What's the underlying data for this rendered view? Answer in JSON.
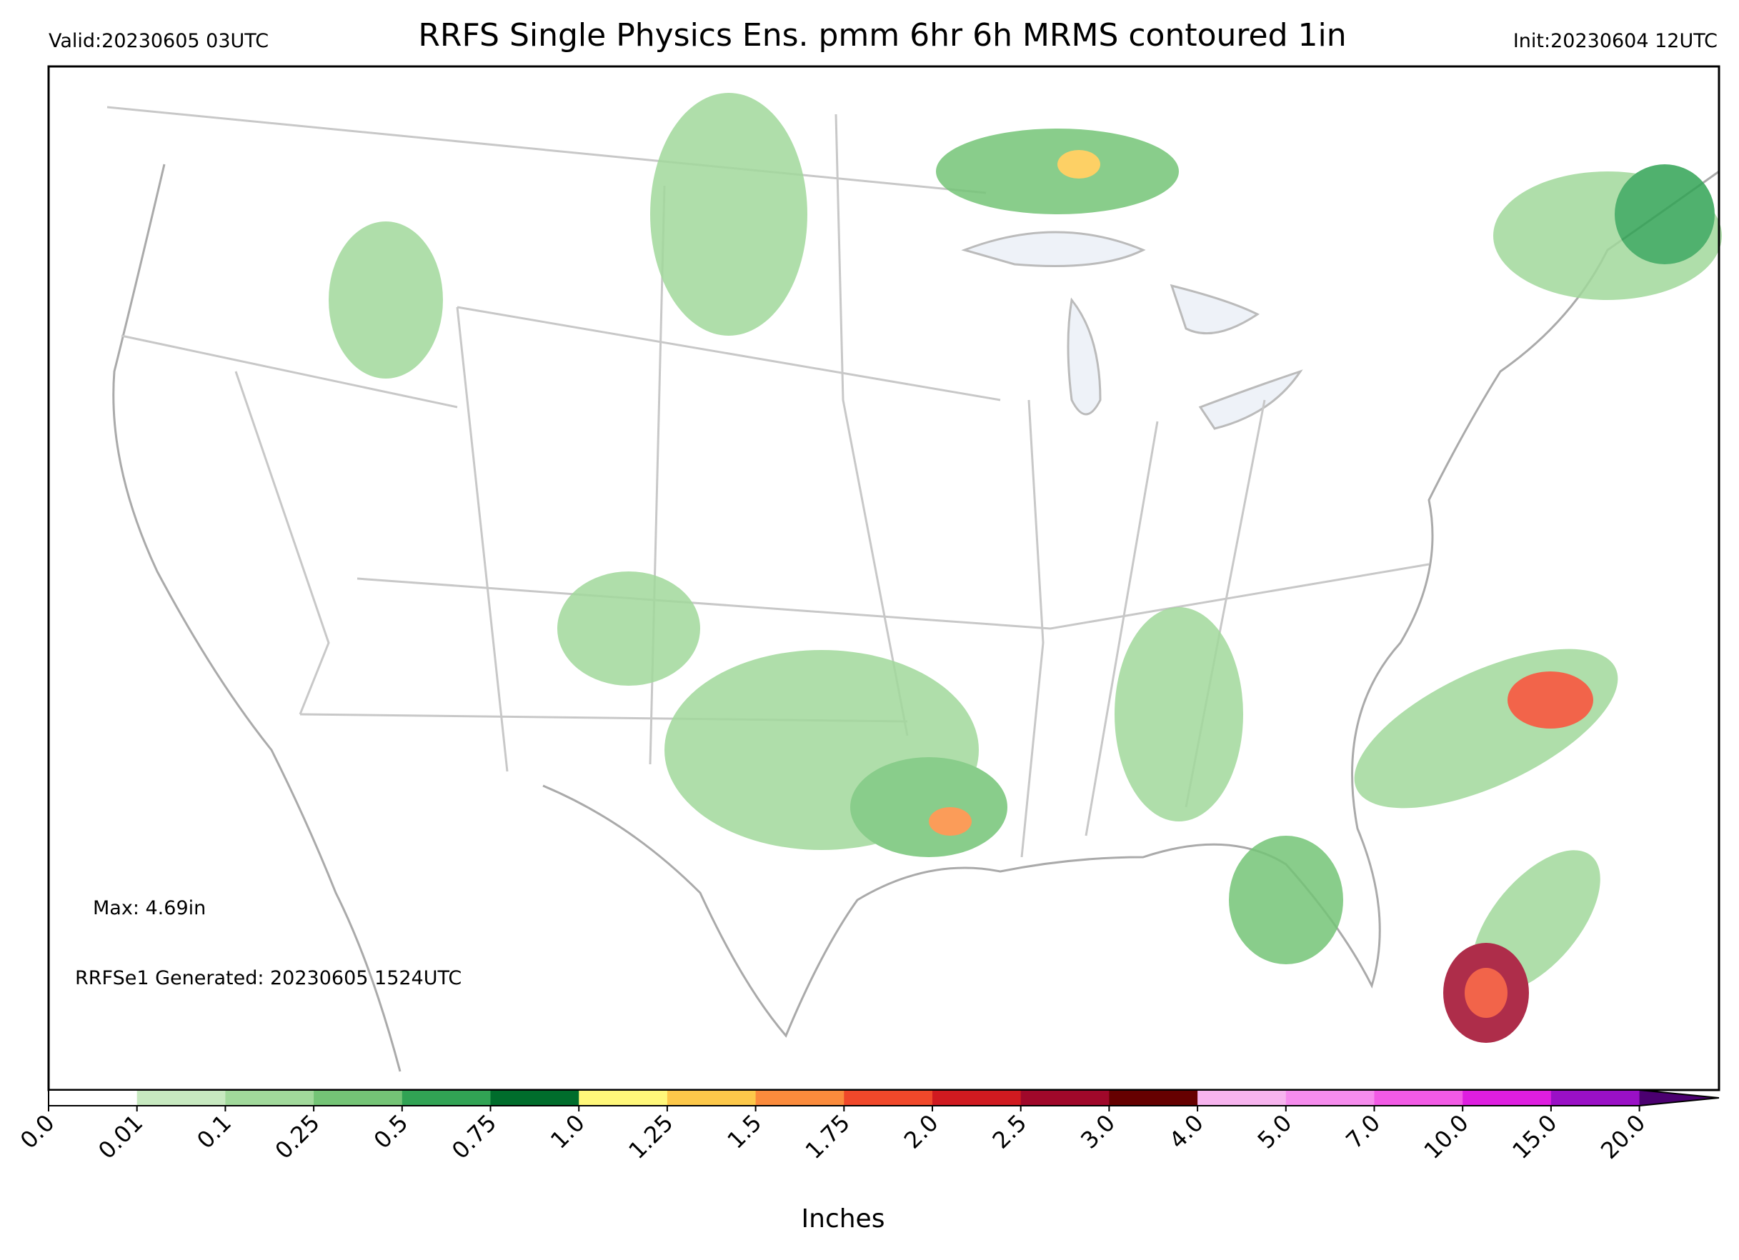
{
  "header": {
    "valid": "Valid:20230605 03UTC",
    "title": "RRFS Single Physics Ens. pmm 6hr 6h MRMS contoured 1in",
    "init": "Init:20230604 12UTC"
  },
  "annotations": {
    "max": "Max: 4.69in",
    "generated": "RRFSe1 Generated: 20230605 1524UTC"
  },
  "colorbar": {
    "label": "Inches",
    "ticks": [
      "0.0",
      "0.01",
      "0.1",
      "0.25",
      "0.5",
      "0.75",
      "1.0",
      "1.25",
      "1.5",
      "1.75",
      "2.0",
      "2.5",
      "3.0",
      "4.0",
      "5.0",
      "7.0",
      "10.0",
      "15.0",
      "20.0"
    ],
    "colors": [
      "#ffffff",
      "#c7e9c0",
      "#a1d99b",
      "#74c476",
      "#31a354",
      "#006d2c",
      "#fff77a",
      "#fdc84a",
      "#fb8b3c",
      "#f0482a",
      "#d01a20",
      "#a0082a",
      "#660000",
      "#f7b4ee",
      "#f68ced",
      "#f25ae5",
      "#de1ee0",
      "#9a10c6"
    ],
    "extend_color": "#4b0070"
  }
}
